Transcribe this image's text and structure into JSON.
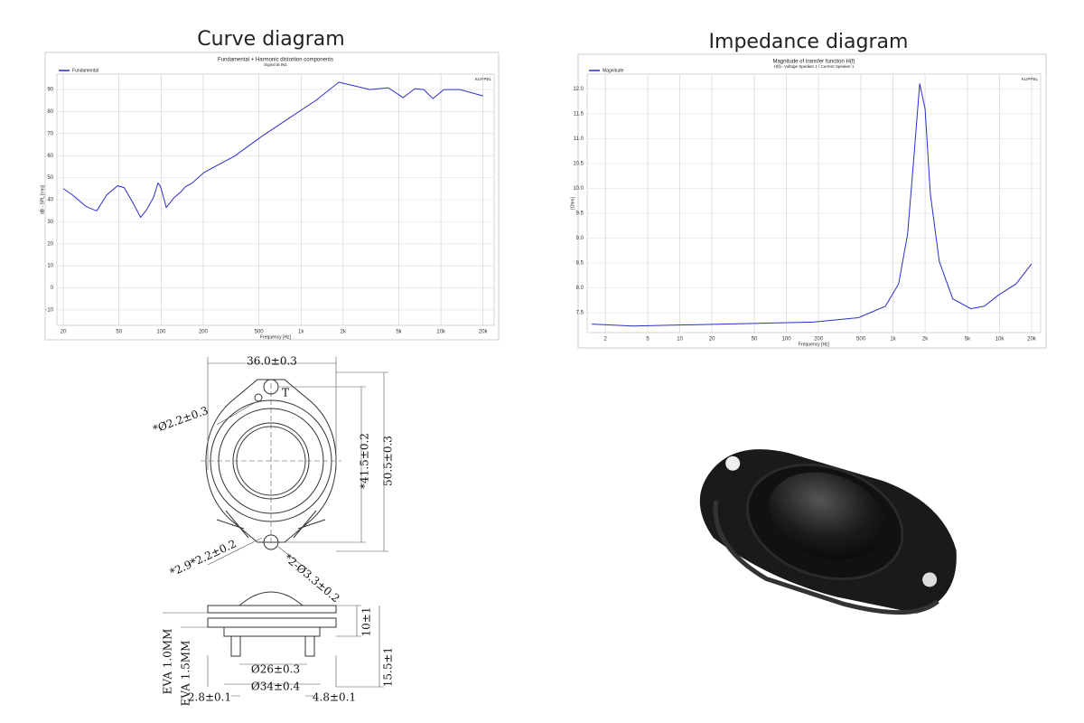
{
  "chart_data": [
    {
      "type": "line",
      "title": "Curve diagram",
      "subtitle": "Fundamental + Harmonic distortion components",
      "note": "Signal at IN1",
      "watermark": "KLIPPEL",
      "xlabel": "Frequency [Hz]",
      "ylabel": "dB - SPL [rms]",
      "xscale": "log",
      "grid": true,
      "legend": "upper left",
      "x": [
        20,
        23.2,
        29,
        34.6,
        40.9,
        48.9,
        54.4,
        63.4,
        71.3,
        78.6,
        88.2,
        95,
        99,
        109,
        124,
        138,
        150,
        167,
        203,
        335,
        525,
        820,
        1280,
        1860,
        2300,
        3100,
        4200,
        5370,
        6510,
        7550,
        8760,
        10500,
        13700,
        20000
      ],
      "series": [
        {
          "name": "Fundamental",
          "color": "#2b2fc8",
          "values": [
            45.1,
            42.2,
            37,
            34.9,
            42.2,
            46.3,
            45.5,
            38.2,
            32,
            35.3,
            41,
            47.6,
            46,
            36.5,
            41,
            43.5,
            46,
            47.6,
            52.4,
            59.8,
            68.8,
            77,
            85.1,
            93.3,
            92,
            90,
            90.8,
            86.3,
            90.4,
            90,
            85.9,
            90,
            90,
            87.1
          ]
        }
      ],
      "xlim": [
        18,
        24000
      ],
      "ylim": [
        -17,
        97
      ],
      "xticks": [
        20,
        50,
        100,
        200,
        500,
        {
          "value": 1000,
          "label": "1k"
        },
        {
          "value": 2000,
          "label": "2k"
        },
        {
          "value": 5000,
          "label": "5k"
        },
        {
          "value": 10000,
          "label": "10k"
        },
        {
          "value": 20000,
          "label": "20k"
        }
      ],
      "yticks": [
        90,
        80,
        70,
        60,
        50,
        40,
        30,
        20,
        10,
        0,
        -10
      ]
    },
    {
      "type": "line",
      "title": "Impedance diagram",
      "subtitle": "Magnitude of transfer function H(f)",
      "note": "H(f)= Voltage Speaker 1 / Current Speaker 1",
      "watermark": "KLIPPEL",
      "xlabel": "Frequency [Hz]",
      "ylabel": "[Ohm]",
      "xscale": "log",
      "grid": true,
      "legend": "upper left",
      "x": [
        1.49,
        3.6,
        25.3,
        179,
        474,
        850,
        1130,
        1370,
        1580,
        1780,
        2000,
        2240,
        2720,
        3640,
        5370,
        7200,
        9700,
        14300,
        20000
      ],
      "series": [
        {
          "name": "Magnitude",
          "color": "#2b2fc8",
          "values": [
            7.27,
            7.23,
            7.27,
            7.31,
            7.4,
            7.63,
            8.08,
            9.08,
            10.7,
            12.11,
            11.6,
            9.89,
            8.53,
            7.78,
            7.58,
            7.63,
            7.85,
            8.08,
            8.48
          ]
        }
      ],
      "xlim": [
        1.35,
        24300
      ],
      "ylim": [
        7.1,
        12.3
      ],
      "xticks": [
        2,
        5,
        10,
        20,
        50,
        100,
        200,
        500,
        {
          "value": 1000,
          "label": "1k"
        },
        {
          "value": 2000,
          "label": "2k"
        },
        {
          "value": 5000,
          "label": "5k"
        },
        {
          "value": 10000,
          "label": "10k"
        },
        {
          "value": 20000,
          "label": "20k"
        }
      ],
      "yticks": [
        {
          "value": 12,
          "label": "12.0"
        },
        11.5,
        {
          "value": 11,
          "label": "11.0"
        },
        10.5,
        {
          "value": 10,
          "label": "10.0"
        },
        9.5,
        {
          "value": 9,
          "label": "9.0"
        },
        8.5,
        {
          "value": 8,
          "label": "8.0"
        },
        7.5
      ]
    }
  ],
  "drawing": {
    "labels": [
      "36.0±0.3",
      "T",
      "*Ø2.2±0.3",
      "*41.5±0.2",
      "50.5±0.3",
      "*2.9*2.2±0.2",
      "*2-Ø3.3±0.2",
      "10±1",
      "15.5±1",
      "EVA 1.0MM",
      "EVA 1.5MM",
      "Ø26±0.3",
      "Ø34±0.4",
      "2.8±0.1",
      "4.8±0.1"
    ]
  }
}
